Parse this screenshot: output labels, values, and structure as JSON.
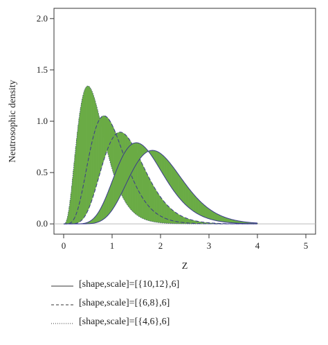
{
  "chart_data": {
    "type": "line",
    "title": "",
    "xlabel": "Z",
    "ylabel": "Neutrosophic density",
    "xlim": [
      -0.2,
      5.2
    ],
    "ylim": [
      -0.1,
      2.1
    ],
    "xticks": [
      "0",
      "1",
      "2",
      "3",
      "4",
      "5"
    ],
    "yticks": [
      "0.0",
      "0.5",
      "1.0",
      "1.5",
      "2.0"
    ],
    "grid": false,
    "legend_position": "below",
    "fill_color": "#6aab45",
    "line_color": "#3a3a8c",
    "series": [
      {
        "name": "[shape,scale]=[{10,12},6]",
        "line_style": "solid",
        "band": [
          {
            "shape": 10,
            "scale": 6
          },
          {
            "shape": 12,
            "scale": 6
          }
        ]
      },
      {
        "name": "[shape,scale]=[{6,8},6]",
        "line_style": "dashed",
        "band": [
          {
            "shape": 6,
            "scale": 6
          },
          {
            "shape": 8,
            "scale": 6
          }
        ]
      },
      {
        "name": "[shape,scale]=[{4,6},6]",
        "line_style": "dotted",
        "band": [
          {
            "shape": 4,
            "scale": 6
          },
          {
            "shape": 6,
            "scale": 6
          }
        ]
      }
    ]
  }
}
